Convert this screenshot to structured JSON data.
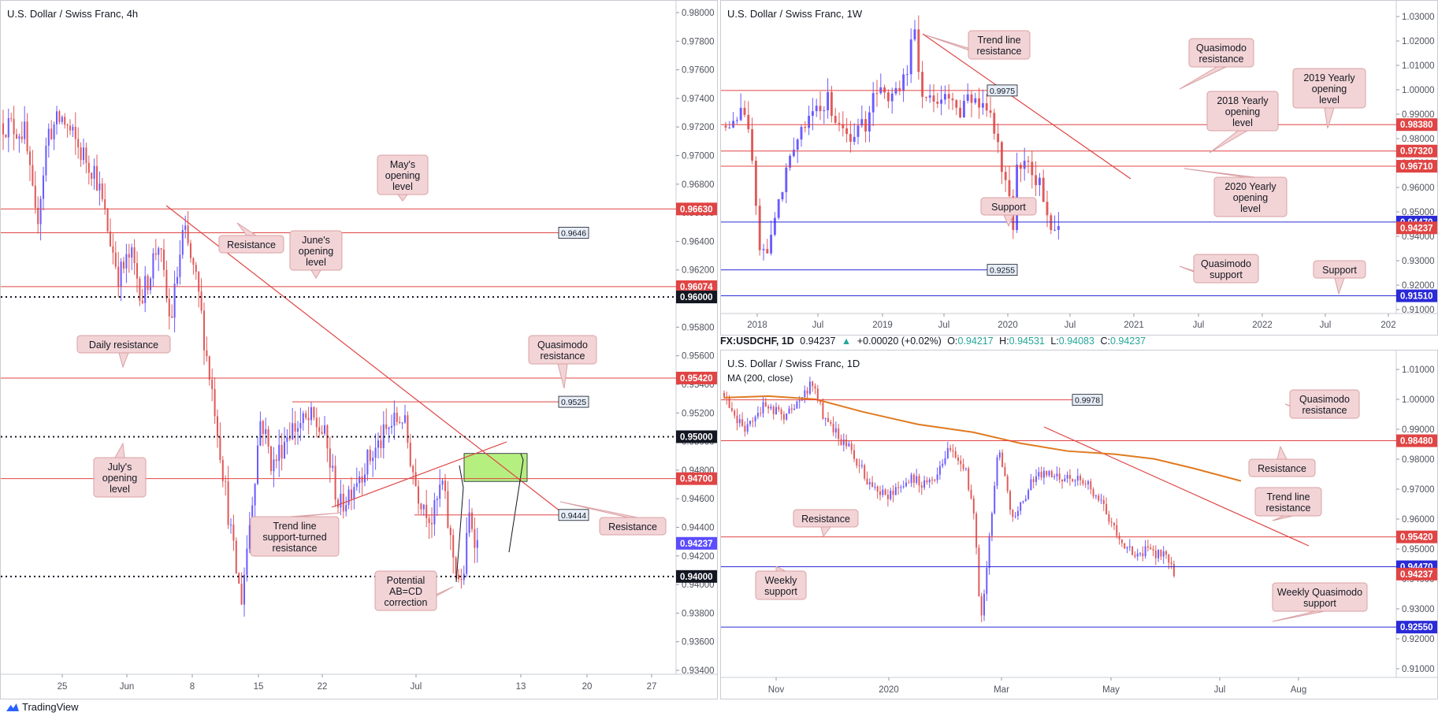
{
  "brand": "TradingView",
  "colors": {
    "up": "#6a5cff",
    "down": "#e05a5a",
    "red_line": "#e04444",
    "blue_line": "#2a2ad8",
    "note_bg": "#f3d4d6",
    "note_border": "#d9a0a4",
    "green_zone": "#b5ef80",
    "ma": "#e07a20"
  },
  "legend": {
    "symbol": "FX:USDCHF, 1D",
    "close": "0.94237",
    "change": "+0.00020 (+0.02%)",
    "o_label": "O:",
    "o": "0.94217",
    "h_label": "H:",
    "h": "0.94531",
    "l_label": "L:",
    "l": "0.94083",
    "c_label": "C:",
    "c": "0.94237"
  },
  "chart_data": [
    {
      "id": "h4",
      "type": "candlestick",
      "title": "U.S. Dollar / Swiss Franc, 4h",
      "ylim": [
        0.933,
        0.9812
      ],
      "x_ticks": [
        "25",
        "Jun",
        "8",
        "15",
        "22",
        "Jul",
        "13",
        "20",
        "27"
      ],
      "y_ticks": [
        "0.98000",
        "0.97800",
        "0.97600",
        "0.97400",
        "0.97200",
        "0.97000",
        "0.96800",
        "0.96600",
        "0.96400",
        "0.96200",
        "0.96000",
        "0.95800",
        "0.95600",
        "0.95400",
        "0.95200",
        "0.95000",
        "0.94800",
        "0.94600",
        "0.94400",
        "0.94200",
        "0.94000",
        "0.93800",
        "0.93600",
        "0.93400"
      ],
      "levels": [
        {
          "value": 0.9663,
          "style": "red",
          "tag": "0.96630"
        },
        {
          "value": 0.9646,
          "style": "red",
          "box": "0.9646"
        },
        {
          "value": 0.96074,
          "style": "red",
          "tag": "0.96074"
        },
        {
          "value": 0.96,
          "style": "dotted",
          "tag": "0.96000"
        },
        {
          "value": 0.9542,
          "style": "red",
          "tag": "0.95420"
        },
        {
          "value": 0.9525,
          "style": "red-short",
          "box": "0.9525"
        },
        {
          "value": 0.95,
          "style": "dotted",
          "tag": "0.95000"
        },
        {
          "value": 0.947,
          "style": "red",
          "tag": "0.94700"
        },
        {
          "value": 0.9444,
          "style": "red-short",
          "box": "0.9444"
        },
        {
          "value": 0.94,
          "style": "dotted",
          "tag": "0.94000"
        }
      ],
      "last_price": "0.94237",
      "annotations": [
        "May's opening level",
        "Resistance",
        "June's opening level",
        "Daily resistance",
        "Quasimodo resistance",
        "July's opening level",
        "Trend line support-turned resistance",
        "Resistance",
        "Potential AB=CD correction"
      ]
    },
    {
      "id": "w1",
      "type": "candlestick",
      "title": "U.S. Dollar / Swiss Franc, 1W",
      "ylim": [
        0.908,
        1.0335
      ],
      "x_ticks": [
        "2018",
        "Jul",
        "2019",
        "Jul",
        "2020",
        "Jul",
        "2021",
        "Jul",
        "2022",
        "Jul",
        "202"
      ],
      "y_ticks": [
        "1.03000",
        "1.02000",
        "1.01000",
        "1.00000",
        "0.99000",
        "0.98000",
        "0.97000",
        "0.96000",
        "0.95000",
        "0.94000",
        "0.93000",
        "0.92000",
        "0.91000"
      ],
      "levels": [
        {
          "value": 0.9975,
          "style": "red",
          "box": "0.9975"
        },
        {
          "value": 0.9838,
          "style": "red",
          "tag": "0.98380"
        },
        {
          "value": 0.9732,
          "style": "red",
          "tag": "0.97320"
        },
        {
          "value": 0.9671,
          "style": "red",
          "tag": "0.96710"
        },
        {
          "value": 0.9447,
          "style": "blue",
          "tag": "0.94470"
        },
        {
          "value": 0.9255,
          "style": "blue",
          "box": "0.9255"
        },
        {
          "value": 0.9151,
          "style": "blue",
          "tag": "0.91510"
        }
      ],
      "last_price": "0.94237",
      "annotations": [
        "Trend line resistance",
        "Quasimodo resistance",
        "2019 Yearly opening level",
        "2018 Yearly opening level",
        "2020 Yearly opening level",
        "Support",
        "Quasimodo support",
        "Support"
      ]
    },
    {
      "id": "d1",
      "type": "candlestick",
      "title": "U.S. Dollar / Swiss Franc, 1D",
      "indicator": "MA (200, close)",
      "ylim": [
        0.9095,
        1.0135
      ],
      "x_ticks": [
        "Nov",
        "2020",
        "Mar",
        "May",
        "Jul",
        "Aug"
      ],
      "y_ticks": [
        "1.01000",
        "1.00000",
        "0.99000",
        "0.98000",
        "0.97000",
        "0.96000",
        "0.95000",
        "0.94000",
        "0.93000",
        "0.92000",
        "0.91000"
      ],
      "levels": [
        {
          "value": 0.9978,
          "style": "red",
          "box": "0.9978"
        },
        {
          "value": 0.9848,
          "style": "red",
          "tag": "0.98480"
        },
        {
          "value": 0.9542,
          "style": "red",
          "tag": "0.95420"
        },
        {
          "value": 0.9447,
          "style": "blue",
          "tag": "0.94470"
        },
        {
          "value": 0.9255,
          "style": "blue",
          "tag": "0.92550"
        }
      ],
      "last_price": "0.94237",
      "annotations": [
        "Quasimodo resistance",
        "Resistance",
        "Trend line resistance",
        "Resistance",
        "Weekly support",
        "Weekly Quasimodo support"
      ]
    }
  ]
}
